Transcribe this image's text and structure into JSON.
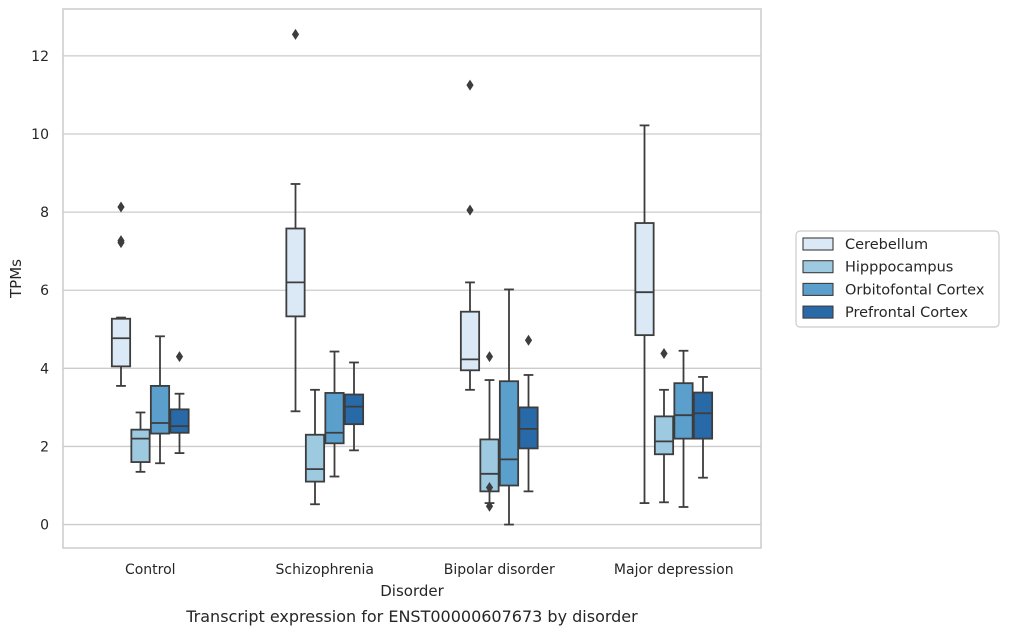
{
  "chart_data": {
    "type": "box",
    "title": "",
    "caption": "Transcript expression for ENST00000607673 by disorder",
    "xlabel": "Disorder",
    "ylabel": "TPMs",
    "ylim": [
      -0.6,
      13.2
    ],
    "yticks": [
      0,
      2,
      4,
      6,
      8,
      10,
      12
    ],
    "grid": "horizontal",
    "legend_position": "right",
    "categories": [
      "Control",
      "Schizophrenia",
      "Bipolar disorder",
      "Major depression"
    ],
    "series": [
      {
        "name": "Cerebellum",
        "color": "#dbe9f6",
        "boxes": [
          {
            "whislo": 3.55,
            "q1": 4.05,
            "med": 4.77,
            "q3": 5.27,
            "whishi": 5.3,
            "fliers": [
              7.22,
              7.27,
              8.13
            ]
          },
          {
            "whislo": 2.9,
            "q1": 5.33,
            "med": 6.2,
            "q3": 7.58,
            "whishi": 8.72,
            "fliers": [
              12.55
            ]
          },
          {
            "whislo": 3.45,
            "q1": 3.95,
            "med": 4.23,
            "q3": 5.45,
            "whishi": 6.2,
            "fliers": [
              8.05,
              11.25
            ]
          },
          {
            "whislo": 0.55,
            "q1": 4.85,
            "med": 5.95,
            "q3": 7.72,
            "whishi": 10.22,
            "fliers": []
          }
        ]
      },
      {
        "name": "Hipppocampus",
        "color": "#9ecae1",
        "boxes": [
          {
            "whislo": 1.35,
            "q1": 1.6,
            "med": 2.2,
            "q3": 2.43,
            "whishi": 2.87,
            "fliers": []
          },
          {
            "whislo": 0.52,
            "q1": 1.1,
            "med": 1.42,
            "q3": 2.3,
            "whishi": 3.45,
            "fliers": []
          },
          {
            "whislo": 0.55,
            "q1": 0.85,
            "med": 1.3,
            "q3": 2.18,
            "whishi": 3.7,
            "fliers": [
              0.47,
              0.95,
              4.3
            ]
          },
          {
            "whislo": 0.57,
            "q1": 1.8,
            "med": 2.13,
            "q3": 2.77,
            "whishi": 3.45,
            "fliers": [
              4.38
            ]
          }
        ]
      },
      {
        "name": "Orbitofontal Cortex",
        "color": "#5b9fcd",
        "boxes": [
          {
            "whislo": 1.57,
            "q1": 2.33,
            "med": 2.6,
            "q3": 3.55,
            "whishi": 4.82,
            "fliers": []
          },
          {
            "whislo": 1.23,
            "q1": 2.08,
            "med": 2.35,
            "q3": 3.37,
            "whishi": 4.43,
            "fliers": []
          },
          {
            "whislo": 0.0,
            "q1": 1.0,
            "med": 1.67,
            "q3": 3.67,
            "whishi": 6.02,
            "fliers": []
          },
          {
            "whislo": 0.45,
            "q1": 2.2,
            "med": 2.8,
            "q3": 3.62,
            "whishi": 4.45,
            "fliers": []
          }
        ]
      },
      {
        "name": "Prefrontal Cortex",
        "color": "#2869a8",
        "boxes": [
          {
            "whislo": 1.83,
            "q1": 2.35,
            "med": 2.52,
            "q3": 2.95,
            "whishi": 3.35,
            "fliers": [
              4.3
            ]
          },
          {
            "whislo": 1.9,
            "q1": 2.57,
            "med": 3.02,
            "q3": 3.33,
            "whishi": 4.15,
            "fliers": []
          },
          {
            "whislo": 0.85,
            "q1": 1.95,
            "med": 2.45,
            "q3": 3.0,
            "whishi": 3.83,
            "fliers": [
              4.72
            ]
          },
          {
            "whislo": 1.2,
            "q1": 2.2,
            "med": 2.85,
            "q3": 3.38,
            "whishi": 3.78,
            "fliers": []
          }
        ]
      }
    ]
  }
}
